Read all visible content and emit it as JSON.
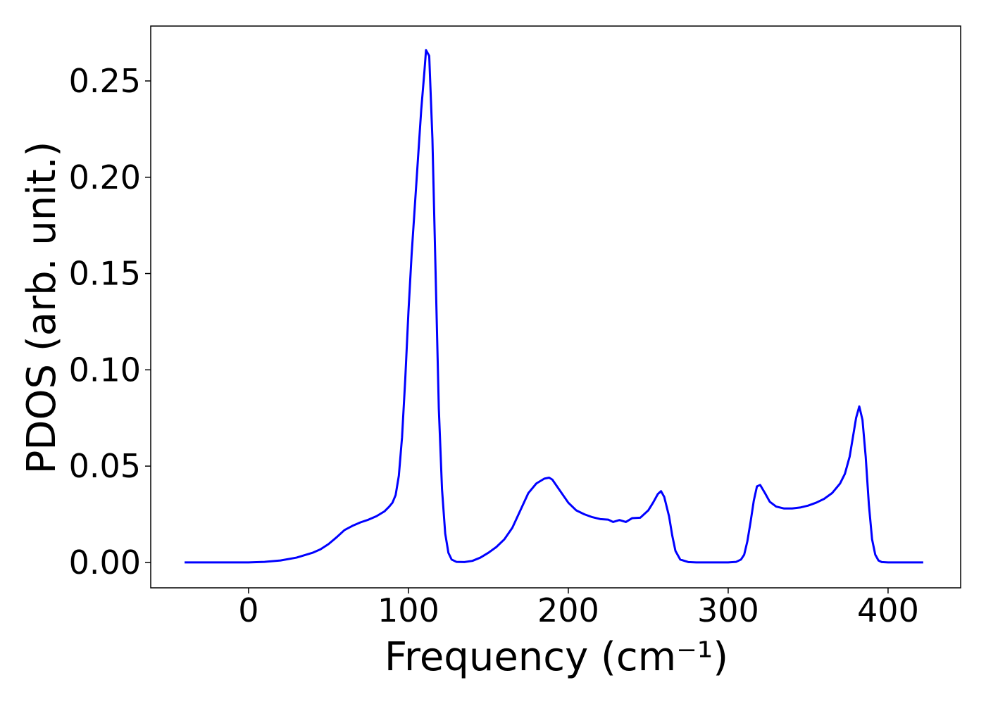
{
  "chart_data": {
    "type": "line",
    "xlabel": "Frequency (cm⁻¹)",
    "ylabel": "PDOS (arb. unit.)",
    "color": "#0000ff",
    "x": [
      -40,
      -30,
      -20,
      -10,
      0,
      10,
      20,
      30,
      40,
      45,
      50,
      55,
      60,
      65,
      70,
      75,
      80,
      85,
      88,
      90,
      92,
      94,
      96,
      98,
      100,
      102,
      104,
      106,
      108,
      110,
      111,
      113,
      115,
      117,
      119,
      121,
      123,
      125,
      127,
      130,
      135,
      140,
      145,
      150,
      155,
      160,
      165,
      170,
      175,
      180,
      185,
      188,
      190,
      195,
      200,
      205,
      210,
      215,
      220,
      225,
      228,
      232,
      236,
      240,
      245,
      250,
      253,
      256,
      258,
      260,
      263,
      265,
      267,
      270,
      275,
      280,
      300,
      305,
      308,
      310,
      312,
      314,
      316,
      318,
      320,
      323,
      326,
      330,
      335,
      340,
      345,
      350,
      355,
      360,
      365,
      370,
      373,
      376,
      378,
      380,
      382,
      384,
      386,
      388,
      390,
      392,
      394,
      396,
      400,
      410,
      422
    ],
    "values": [
      0,
      0,
      0,
      0,
      0,
      0.0003,
      0.001,
      0.0025,
      0.005,
      0.0068,
      0.0095,
      0.013,
      0.0168,
      0.019,
      0.0208,
      0.0222,
      0.024,
      0.0265,
      0.029,
      0.031,
      0.035,
      0.045,
      0.065,
      0.095,
      0.13,
      0.16,
      0.185,
      0.21,
      0.235,
      0.255,
      0.266,
      0.263,
      0.22,
      0.15,
      0.08,
      0.038,
      0.015,
      0.005,
      0.0015,
      0.0003,
      0.0002,
      0.0008,
      0.0025,
      0.005,
      0.008,
      0.012,
      0.018,
      0.027,
      0.036,
      0.041,
      0.0435,
      0.044,
      0.043,
      0.037,
      0.031,
      0.027,
      0.025,
      0.0235,
      0.0225,
      0.0222,
      0.021,
      0.022,
      0.021,
      0.023,
      0.0232,
      0.027,
      0.031,
      0.0355,
      0.037,
      0.034,
      0.024,
      0.014,
      0.006,
      0.0015,
      0.0002,
      0,
      0,
      0.0003,
      0.0015,
      0.004,
      0.011,
      0.021,
      0.032,
      0.0395,
      0.0402,
      0.036,
      0.0315,
      0.029,
      0.028,
      0.028,
      0.0285,
      0.0295,
      0.031,
      0.033,
      0.036,
      0.041,
      0.046,
      0.055,
      0.065,
      0.075,
      0.081,
      0.074,
      0.055,
      0.03,
      0.012,
      0.004,
      0.001,
      0.0002,
      0,
      0,
      0
    ],
    "xlim": [
      -61.2,
      445.4
    ],
    "ylim": [
      -0.0132,
      0.2785
    ],
    "xticks": [
      0,
      100,
      200,
      300,
      400
    ],
    "yticks": [
      {
        "value": 0,
        "label": "0.00"
      },
      {
        "value": 0.05,
        "label": "0.05"
      },
      {
        "value": 0.1,
        "label": "0.10"
      },
      {
        "value": 0.15,
        "label": "0.15"
      },
      {
        "value": 0.2,
        "label": "0.20"
      },
      {
        "value": 0.25,
        "label": "0.25"
      }
    ]
  }
}
